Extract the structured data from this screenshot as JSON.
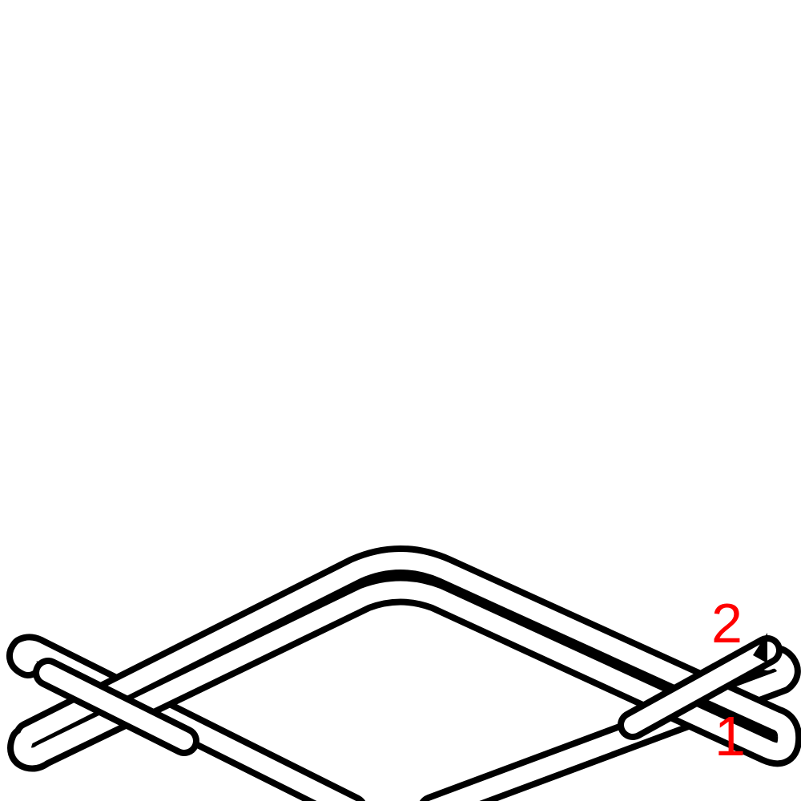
{
  "diagram": {
    "labels": {
      "crossing_1": "1",
      "crossing_2": "2"
    },
    "colors": {
      "background": "#ffffff",
      "strand_stroke": "#000000",
      "strand_fill": "#ffffff",
      "label": "#ff0000"
    }
  }
}
